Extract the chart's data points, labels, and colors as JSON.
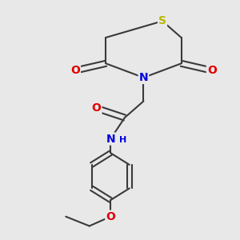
{
  "background_color": "#e8e8e8",
  "bond_color": "#3a3a3a",
  "bond_width": 1.5,
  "atom_colors": {
    "S": "#b8b800",
    "N": "#0000e0",
    "O": "#e00000",
    "C": "#3a3a3a"
  },
  "figsize": [
    3.0,
    3.0
  ],
  "dpi": 100,
  "xlim": [
    0,
    10
  ],
  "ylim": [
    0,
    10
  ]
}
